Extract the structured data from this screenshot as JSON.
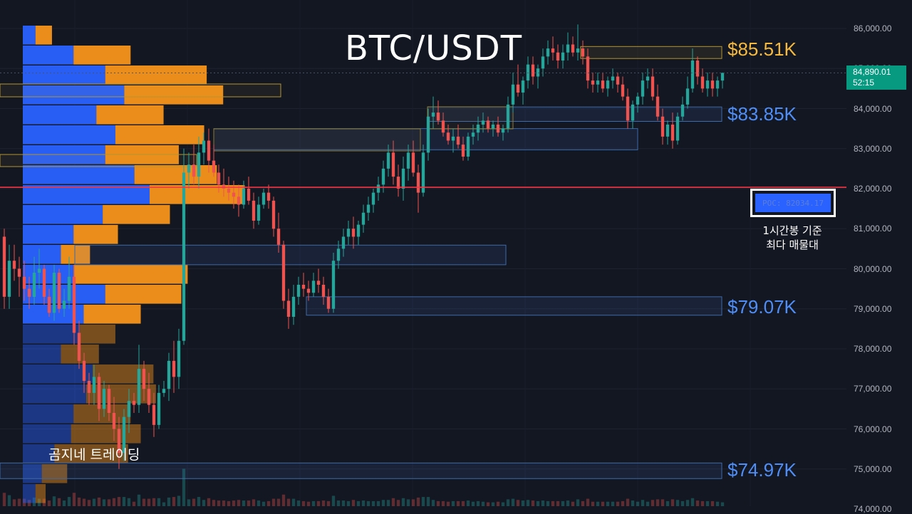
{
  "chart_data": {
    "type": "candlestick",
    "title": "BTC/USDT",
    "y_axis": {
      "ylim": [
        73900,
        86700
      ],
      "ticks": [
        "86,000.00",
        "85,000.00",
        "84,000.00",
        "83,000.00",
        "82,000.00",
        "81,000.00",
        "80,000.00",
        "79,000.00",
        "78,000.00",
        "77,000.00",
        "76,000.00",
        "75,000.00",
        "74,000.00"
      ],
      "tick_values": [
        86000,
        85000,
        84000,
        83000,
        82000,
        81000,
        80000,
        79000,
        78000,
        77000,
        76000,
        75000,
        74000
      ]
    },
    "last_price": {
      "value": "84,890.01",
      "countdown": "52:15",
      "price": 84890.01
    },
    "poc": {
      "label": "POC: 82034.17",
      "price": 82034.17,
      "caption_line1": "1시간봉 기준",
      "caption_line2": "최다 매물대"
    },
    "levels": [
      {
        "label": "$85.51K",
        "price": 85510,
        "color": "#f4b93e"
      },
      {
        "label": "$83.85K",
        "price": 83850,
        "color": "#4f8ef7"
      },
      {
        "label": "$79.07K",
        "price": 79070,
        "color": "#4f8ef7"
      },
      {
        "label": "$74.97K",
        "price": 74970,
        "color": "#4f8ef7"
      }
    ],
    "zones": [
      {
        "y1": 85550,
        "y2": 85250,
        "color": "yellow"
      },
      {
        "y1": 84040,
        "y2": 83680,
        "color": "blue"
      },
      {
        "y1": 83500,
        "y2": 82970,
        "color": "blue"
      },
      {
        "y1": 80590,
        "y2": 80100,
        "color": "blue"
      },
      {
        "y1": 79300,
        "y2": 78840,
        "color": "blue"
      },
      {
        "y1": 75150,
        "y2": 74760,
        "color": "blue"
      }
    ],
    "volume_profile_rows": [
      {
        "buy": 0.1,
        "sell": 0.13
      },
      {
        "buy": 0.4,
        "sell": 0.45
      },
      {
        "buy": 0.65,
        "sell": 0.8
      },
      {
        "buy": 0.8,
        "sell": 0.78
      },
      {
        "buy": 0.58,
        "sell": 0.53
      },
      {
        "buy": 0.73,
        "sell": 0.7
      },
      {
        "buy": 0.65,
        "sell": 0.58
      },
      {
        "buy": 0.88,
        "sell": 0.65
      },
      {
        "buy": 1.0,
        "sell": 0.75
      },
      {
        "buy": 0.63,
        "sell": 0.53
      },
      {
        "buy": 0.4,
        "sell": 0.35
      },
      {
        "buy": 0.3,
        "sell": 0.23
      },
      {
        "buy": 0.4,
        "sell": 0.9
      },
      {
        "buy": 0.65,
        "sell": 0.6
      },
      {
        "buy": 0.48,
        "sell": 0.45
      },
      {
        "buy": 0.45,
        "sell": 0.28
      },
      {
        "buy": 0.3,
        "sell": 0.3
      },
      {
        "buy": 0.55,
        "sell": 0.48
      },
      {
        "buy": 0.5,
        "sell": 0.55
      },
      {
        "buy": 0.4,
        "sell": 0.45
      },
      {
        "buy": 0.38,
        "sell": 0.55
      },
      {
        "buy": 0.25,
        "sell": 0.58
      },
      {
        "buy": 0.15,
        "sell": 0.2
      },
      {
        "buy": 0.1,
        "sell": 0.08
      }
    ],
    "candles": [
      [
        80800,
        81000,
        79000,
        79300
      ],
      [
        79300,
        80600,
        79000,
        80200
      ],
      [
        80200,
        80600,
        79700,
        80000
      ],
      [
        80000,
        80300,
        79300,
        79800
      ],
      [
        79800,
        80200,
        79200,
        79500
      ],
      [
        79500,
        79800,
        79000,
        79300
      ],
      [
        79300,
        80300,
        79100,
        79900
      ],
      [
        79900,
        80500,
        79500,
        80000
      ],
      [
        80000,
        80100,
        79100,
        79300
      ],
      [
        79300,
        79500,
        78800,
        78900
      ],
      [
        78900,
        80100,
        78700,
        79900
      ],
      [
        79900,
        80000,
        78900,
        79000
      ],
      [
        79000,
        79500,
        78800,
        79200
      ],
      [
        79200,
        80300,
        79000,
        79800
      ],
      [
        79800,
        80100,
        78100,
        78400
      ],
      [
        78400,
        78700,
        77500,
        77700
      ],
      [
        77700,
        77900,
        76900,
        77200
      ],
      [
        77200,
        77400,
        76600,
        76900
      ],
      [
        76900,
        77600,
        76600,
        77300
      ],
      [
        77300,
        77400,
        76200,
        76500
      ],
      [
        76500,
        77200,
        76300,
        77000
      ],
      [
        77000,
        77100,
        76200,
        76400
      ],
      [
        76400,
        76800,
        75700,
        76000
      ],
      [
        76000,
        76300,
        75000,
        75400
      ],
      [
        75400,
        76500,
        75200,
        76300
      ],
      [
        76300,
        77000,
        75900,
        76700
      ],
      [
        76700,
        76900,
        76400,
        76600
      ],
      [
        76600,
        78100,
        76400,
        77500
      ],
      [
        77500,
        77700,
        76700,
        77000
      ],
      [
        77000,
        77400,
        76400,
        76600
      ],
      [
        76600,
        76900,
        75800,
        76100
      ],
      [
        76100,
        77100,
        76000,
        76900
      ],
      [
        76900,
        77200,
        76800,
        77000
      ],
      [
        77000,
        77900,
        76700,
        77700
      ],
      [
        77700,
        78200,
        76900,
        77300
      ],
      [
        77300,
        78500,
        77000,
        78200
      ],
      [
        78200,
        83000,
        78100,
        82400
      ],
      [
        82400,
        82900,
        82000,
        82600
      ],
      [
        82600,
        83100,
        82100,
        82300
      ],
      [
        82300,
        83300,
        82000,
        82900
      ],
      [
        82900,
        83400,
        82600,
        83200
      ],
      [
        83200,
        83500,
        82400,
        82700
      ],
      [
        82700,
        83100,
        82300,
        82400
      ],
      [
        82400,
        82600,
        81900,
        82100
      ],
      [
        82100,
        82500,
        81800,
        82000
      ],
      [
        82000,
        82300,
        81700,
        81900
      ],
      [
        81900,
        82200,
        81500,
        81800
      ],
      [
        81800,
        82100,
        81300,
        81600
      ],
      [
        81600,
        82200,
        81500,
        82000
      ],
      [
        82000,
        82300,
        81600,
        81700
      ],
      [
        81700,
        81900,
        81000,
        81200
      ],
      [
        81200,
        81800,
        81100,
        81600
      ],
      [
        81600,
        82000,
        81500,
        81900
      ],
      [
        81900,
        82100,
        81500,
        81700
      ],
      [
        81700,
        81800,
        80800,
        81000
      ],
      [
        81000,
        81400,
        80400,
        80600
      ],
      [
        80600,
        80700,
        79000,
        79200
      ],
      [
        79200,
        79500,
        78500,
        78800
      ],
      [
        78800,
        79600,
        78600,
        79300
      ],
      [
        79300,
        79800,
        79100,
        79600
      ],
      [
        79600,
        79900,
        79300,
        79500
      ],
      [
        79500,
        79700,
        79200,
        79400
      ],
      [
        79400,
        79900,
        79300,
        79700
      ],
      [
        79700,
        80000,
        79400,
        79600
      ],
      [
        79600,
        79800,
        79100,
        79300
      ],
      [
        79300,
        79500,
        78900,
        79000
      ],
      [
        79000,
        80400,
        78900,
        80200
      ],
      [
        80200,
        80700,
        80000,
        80500
      ],
      [
        80500,
        81000,
        80300,
        80800
      ],
      [
        80800,
        81200,
        80600,
        81000
      ],
      [
        81000,
        81300,
        80500,
        80800
      ],
      [
        80800,
        81200,
        80600,
        81100
      ],
      [
        81100,
        81600,
        80900,
        81400
      ],
      [
        81400,
        81800,
        81200,
        81600
      ],
      [
        81600,
        82000,
        81400,
        81900
      ],
      [
        81900,
        82300,
        81700,
        82100
      ],
      [
        82100,
        82700,
        81900,
        82500
      ],
      [
        82500,
        83100,
        82300,
        82900
      ],
      [
        82900,
        83200,
        82100,
        82300
      ],
      [
        82300,
        82600,
        81800,
        82000
      ],
      [
        82000,
        82800,
        81700,
        82500
      ],
      [
        82500,
        83100,
        82200,
        82900
      ],
      [
        82900,
        83200,
        82300,
        82400
      ],
      [
        82400,
        82600,
        81400,
        81900
      ],
      [
        81900,
        83100,
        81800,
        82900
      ],
      [
        82900,
        84000,
        82700,
        83800
      ],
      [
        83800,
        84300,
        83500,
        83900
      ],
      [
        83900,
        84200,
        83600,
        83700
      ],
      [
        83700,
        83900,
        83300,
        83400
      ],
      [
        83400,
        83600,
        83100,
        83200
      ],
      [
        83200,
        83500,
        82900,
        83300
      ],
      [
        83300,
        83600,
        83000,
        83100
      ],
      [
        83100,
        83300,
        82700,
        82800
      ],
      [
        82800,
        83400,
        82700,
        83300
      ],
      [
        83300,
        83600,
        83100,
        83400
      ],
      [
        83400,
        83800,
        83200,
        83600
      ],
      [
        83600,
        83900,
        83400,
        83700
      ],
      [
        83700,
        83800,
        83400,
        83500
      ],
      [
        83500,
        83700,
        83300,
        83600
      ],
      [
        83600,
        83800,
        83300,
        83400
      ],
      [
        83400,
        83600,
        83200,
        83500
      ],
      [
        83500,
        84300,
        83400,
        84100
      ],
      [
        84100,
        84900,
        83900,
        84600
      ],
      [
        84600,
        85100,
        84300,
        84400
      ],
      [
        84400,
        84800,
        84100,
        84700
      ],
      [
        84700,
        85300,
        84500,
        85100
      ],
      [
        85100,
        85300,
        84600,
        84800
      ],
      [
        84800,
        85100,
        84500,
        85000
      ],
      [
        85000,
        85500,
        84800,
        85300
      ],
      [
        85300,
        85700,
        85100,
        85500
      ],
      [
        85500,
        85800,
        85200,
        85400
      ],
      [
        85400,
        85600,
        85000,
        85200
      ],
      [
        85200,
        85600,
        85000,
        85400
      ],
      [
        85400,
        85900,
        85200,
        85600
      ],
      [
        85600,
        85800,
        85300,
        85400
      ],
      [
        85400,
        86100,
        85200,
        85500
      ],
      [
        85500,
        85700,
        85100,
        85300
      ],
      [
        85300,
        85500,
        84500,
        84700
      ],
      [
        84700,
        84900,
        84400,
        84600
      ],
      [
        84600,
        84900,
        84400,
        84700
      ],
      [
        84700,
        84900,
        84400,
        84500
      ],
      [
        84500,
        84800,
        84300,
        84700
      ],
      [
        84700,
        85000,
        84500,
        84800
      ],
      [
        84800,
        84900,
        84400,
        84600
      ],
      [
        84600,
        84800,
        84200,
        84300
      ],
      [
        84300,
        84500,
        83500,
        83700
      ],
      [
        83700,
        84200,
        83500,
        84100
      ],
      [
        84100,
        84400,
        83900,
        84300
      ],
      [
        84300,
        84900,
        84100,
        84700
      ],
      [
        84700,
        85000,
        84500,
        84800
      ],
      [
        84800,
        85000,
        84200,
        84300
      ],
      [
        84300,
        84600,
        83700,
        83800
      ],
      [
        83800,
        84000,
        83100,
        83300
      ],
      [
        83300,
        83700,
        83100,
        83600
      ],
      [
        83600,
        83900,
        83000,
        83200
      ],
      [
        83200,
        83900,
        83100,
        83800
      ],
      [
        83800,
        84300,
        83700,
        84100
      ],
      [
        84100,
        84800,
        84000,
        84500
      ],
      [
        84500,
        85500,
        84400,
        85200
      ],
      [
        85200,
        85300,
        84600,
        84800
      ],
      [
        84800,
        85000,
        84400,
        84500
      ],
      [
        84500,
        84900,
        84300,
        84700
      ],
      [
        84700,
        84900,
        84300,
        84500
      ],
      [
        84500,
        84800,
        84300,
        84700
      ],
      [
        84700,
        84900,
        84500,
        84890
      ]
    ]
  },
  "watermark": "곰지네 트레이딩",
  "colors": {
    "up": "#26a69a",
    "down": "#ef5350",
    "background": "#131722",
    "poc_line": "#f23645",
    "profile_buy": "#2962ff",
    "profile_sell": "#f7931a"
  }
}
